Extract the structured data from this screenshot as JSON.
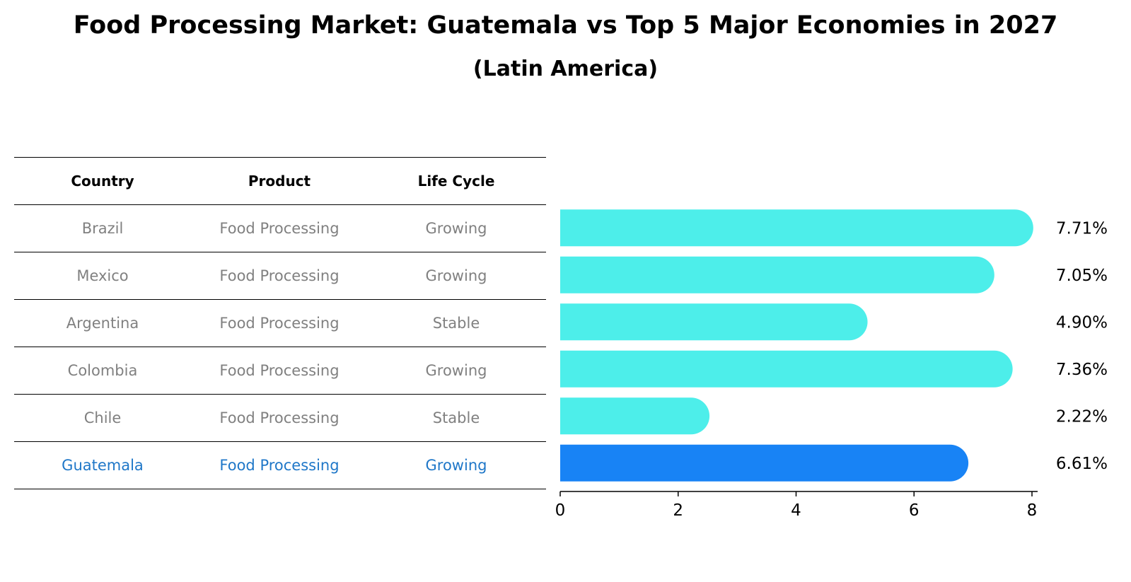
{
  "title": "Food Processing Market: Guatemala vs Top 5 Major Economies in 2027",
  "subtitle": "(Latin America)",
  "table": {
    "headers": [
      "Country",
      "Product",
      "Life Cycle"
    ],
    "rows": [
      {
        "country": "Brazil",
        "product": "Food Processing",
        "life_cycle": "Growing"
      },
      {
        "country": "Mexico",
        "product": "Food Processing",
        "life_cycle": "Growing"
      },
      {
        "country": "Argentina",
        "product": "Food Processing",
        "life_cycle": "Stable"
      },
      {
        "country": "Colombia",
        "product": "Food Processing",
        "life_cycle": "Growing"
      },
      {
        "country": "Chile",
        "product": "Food Processing",
        "life_cycle": "Stable"
      },
      {
        "country": "Guatemala",
        "product": "Food Processing",
        "life_cycle": "Growing"
      }
    ]
  },
  "chart_data": {
    "type": "bar",
    "orientation": "horizontal",
    "categories": [
      "Brazil",
      "Mexico",
      "Argentina",
      "Colombia",
      "Chile",
      "Guatemala"
    ],
    "values": [
      7.71,
      7.05,
      4.9,
      7.36,
      2.22,
      6.61
    ],
    "value_labels": [
      "7.71%",
      "7.05%",
      "4.90%",
      "7.36%",
      "2.22%",
      "6.61%"
    ],
    "highlight_index": 5,
    "xlim": [
      0,
      8
    ],
    "xticks": [
      0,
      2,
      4,
      6,
      8
    ],
    "xlabel": "",
    "ylabel": "",
    "colors": {
      "bar": "#4deeea",
      "highlight": "#1883f5",
      "text_muted": "#808080",
      "text_highlight": "#1f77c8"
    }
  }
}
